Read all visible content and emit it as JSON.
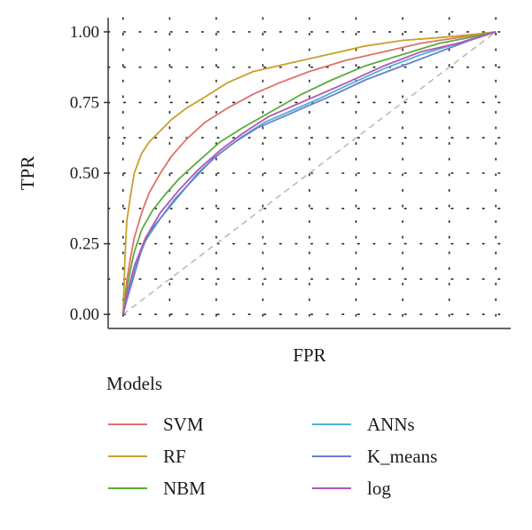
{
  "chart_data": {
    "type": "line",
    "title": "",
    "xlabel": "FPR",
    "ylabel": "TPR",
    "xlim": [
      -0.04,
      1.04
    ],
    "ylim": [
      -0.05,
      1.05
    ],
    "x_tick_labels_shown": false,
    "yticks": [
      0.0,
      0.25,
      0.5,
      0.75,
      1.0
    ],
    "ytick_labels": [
      "0.00",
      "0.25",
      "0.50",
      "0.75",
      "1.00"
    ],
    "grid": "dotted",
    "legend_title": "Models",
    "legend_position": "bottom",
    "reference_line": {
      "from": [
        0,
        0
      ],
      "to": [
        1,
        1
      ],
      "style": "dashed",
      "color": "#bbbbbb"
    },
    "series": [
      {
        "name": "SVM",
        "color": "#e0716a",
        "points": [
          [
            0,
            0
          ],
          [
            0.01,
            0.12
          ],
          [
            0.02,
            0.2
          ],
          [
            0.03,
            0.27
          ],
          [
            0.05,
            0.36
          ],
          [
            0.07,
            0.43
          ],
          [
            0.1,
            0.5
          ],
          [
            0.13,
            0.56
          ],
          [
            0.17,
            0.62
          ],
          [
            0.22,
            0.68
          ],
          [
            0.28,
            0.73
          ],
          [
            0.35,
            0.78
          ],
          [
            0.42,
            0.82
          ],
          [
            0.5,
            0.86
          ],
          [
            0.6,
            0.9
          ],
          [
            0.7,
            0.93
          ],
          [
            0.8,
            0.96
          ],
          [
            0.9,
            0.98
          ],
          [
            1,
            1
          ]
        ]
      },
      {
        "name": "RF",
        "color": "#c7a12b",
        "points": [
          [
            0,
            0
          ],
          [
            0.005,
            0.2
          ],
          [
            0.01,
            0.33
          ],
          [
            0.02,
            0.42
          ],
          [
            0.03,
            0.5
          ],
          [
            0.05,
            0.57
          ],
          [
            0.07,
            0.61
          ],
          [
            0.1,
            0.65
          ],
          [
            0.13,
            0.69
          ],
          [
            0.17,
            0.73
          ],
          [
            0.22,
            0.77
          ],
          [
            0.28,
            0.82
          ],
          [
            0.35,
            0.86
          ],
          [
            0.45,
            0.89
          ],
          [
            0.55,
            0.92
          ],
          [
            0.65,
            0.95
          ],
          [
            0.75,
            0.97
          ],
          [
            0.85,
            0.98
          ],
          [
            0.93,
            0.99
          ],
          [
            1,
            1
          ]
        ]
      },
      {
        "name": "NBM",
        "color": "#5aac3a",
        "points": [
          [
            0,
            0
          ],
          [
            0.01,
            0.09
          ],
          [
            0.02,
            0.16
          ],
          [
            0.03,
            0.22
          ],
          [
            0.05,
            0.3
          ],
          [
            0.08,
            0.37
          ],
          [
            0.11,
            0.42
          ],
          [
            0.15,
            0.48
          ],
          [
            0.2,
            0.54
          ],
          [
            0.26,
            0.61
          ],
          [
            0.32,
            0.66
          ],
          [
            0.4,
            0.72
          ],
          [
            0.48,
            0.78
          ],
          [
            0.56,
            0.83
          ],
          [
            0.65,
            0.88
          ],
          [
            0.75,
            0.92
          ],
          [
            0.85,
            0.96
          ],
          [
            0.93,
            0.98
          ],
          [
            1,
            1
          ]
        ]
      },
      {
        "name": "ANNs",
        "color": "#4fb2cf",
        "points": [
          [
            0,
            0
          ],
          [
            0.01,
            0.06
          ],
          [
            0.03,
            0.16
          ],
          [
            0.06,
            0.26
          ],
          [
            0.1,
            0.34
          ],
          [
            0.15,
            0.42
          ],
          [
            0.2,
            0.5
          ],
          [
            0.26,
            0.57
          ],
          [
            0.32,
            0.63
          ],
          [
            0.38,
            0.68
          ],
          [
            0.45,
            0.72
          ],
          [
            0.52,
            0.76
          ],
          [
            0.6,
            0.81
          ],
          [
            0.7,
            0.87
          ],
          [
            0.8,
            0.92
          ],
          [
            0.9,
            0.96
          ],
          [
            1,
            1
          ]
        ]
      },
      {
        "name": "K_means",
        "color": "#6a7fd0",
        "points": [
          [
            0,
            0
          ],
          [
            0.01,
            0.05
          ],
          [
            0.03,
            0.14
          ],
          [
            0.05,
            0.23
          ],
          [
            0.07,
            0.29
          ],
          [
            0.1,
            0.34
          ],
          [
            0.14,
            0.41
          ],
          [
            0.19,
            0.48
          ],
          [
            0.24,
            0.55
          ],
          [
            0.3,
            0.61
          ],
          [
            0.36,
            0.66
          ],
          [
            0.43,
            0.7
          ],
          [
            0.5,
            0.74
          ],
          [
            0.57,
            0.78
          ],
          [
            0.65,
            0.83
          ],
          [
            0.75,
            0.88
          ],
          [
            0.85,
            0.93
          ],
          [
            0.93,
            0.97
          ],
          [
            1,
            1
          ]
        ]
      },
      {
        "name": "log",
        "color": "#b455b5",
        "points": [
          [
            0,
            0
          ],
          [
            0.01,
            0.07
          ],
          [
            0.03,
            0.17
          ],
          [
            0.06,
            0.27
          ],
          [
            0.1,
            0.36
          ],
          [
            0.15,
            0.44
          ],
          [
            0.2,
            0.51
          ],
          [
            0.26,
            0.58
          ],
          [
            0.32,
            0.64
          ],
          [
            0.39,
            0.7
          ],
          [
            0.46,
            0.74
          ],
          [
            0.53,
            0.78
          ],
          [
            0.6,
            0.82
          ],
          [
            0.7,
            0.88
          ],
          [
            0.8,
            0.93
          ],
          [
            0.9,
            0.96
          ],
          [
            1,
            1
          ]
        ]
      }
    ]
  }
}
